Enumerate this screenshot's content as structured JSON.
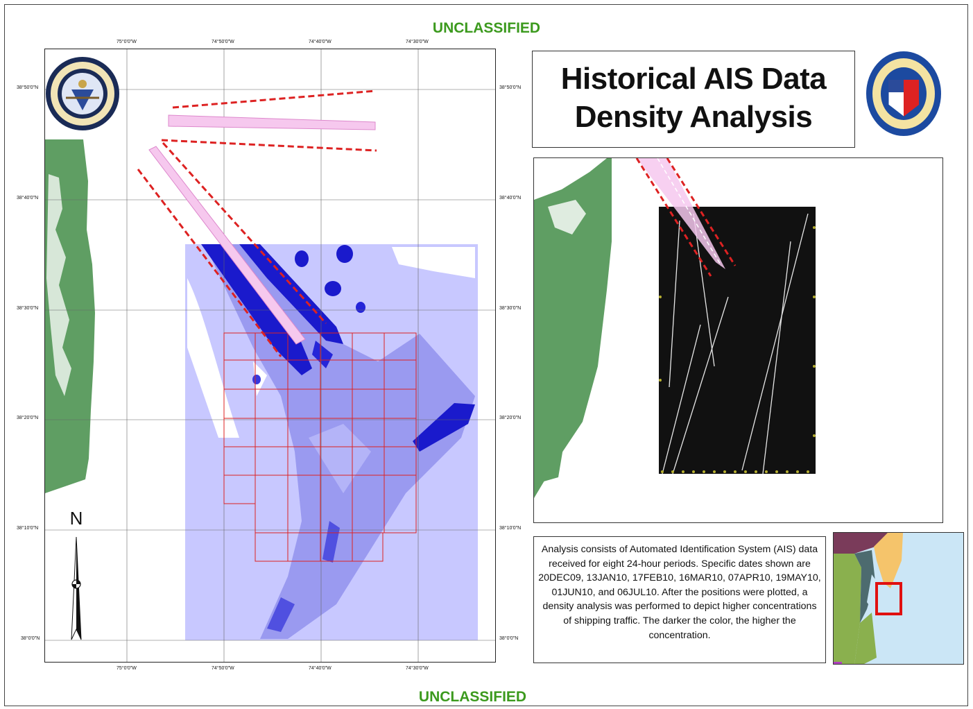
{
  "classification": {
    "top": "UNCLASSIFIED",
    "bottom": "UNCLASSIFIED"
  },
  "title": {
    "line1": "Historical AIS Data",
    "line2": "Density Analysis"
  },
  "description": "Analysis consists of Automated Identification System (AIS) data received for eight 24-hour periods.  Specific dates shown are 20DEC09, 13JAN10, 17FEB10, 16MAR10, 07APR10, 19MAY10, 01JUN10, and 06JUL10.  After the positions were plotted, a density analysis was performed to depict higher concentrations of shipping traffic.  The darker the color, the higher the concentration.",
  "map": {
    "lon_ticks": [
      "75°0'0\"W",
      "74°50'0\"W",
      "74°40'0\"W",
      "74°30'0\"W"
    ],
    "lat_ticks": [
      "38°50'0\"N",
      "38°40'0\"N",
      "38°30'0\"N",
      "38°20'0\"N",
      "38°10'0\"N",
      "38°0'0\"N"
    ]
  },
  "north_arrow": "N",
  "logos": {
    "left": "uscg-intelligence-seal",
    "right": "fifth-coast-guard-district-seal"
  },
  "colors": {
    "classification": "#3c9a1e",
    "land": "#5f9e63",
    "density_low": "#c8c8ff",
    "density_mid": "#8a8ae8",
    "density_high": "#1a1acc",
    "grid_red": "#dd2222",
    "lane_border": "#dd2222",
    "lane_fill": "#f6c8ee",
    "ocean_locator": "#cbe6f6"
  }
}
